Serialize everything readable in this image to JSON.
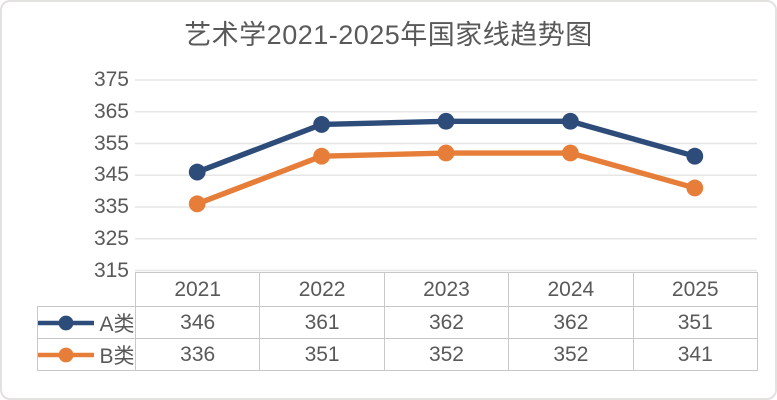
{
  "title": "艺术学2021-2025年国家线趋势图",
  "chart_data": {
    "type": "line",
    "title": "艺术学2021-2025年国家线趋势图",
    "categories": [
      "2021",
      "2022",
      "2023",
      "2024",
      "2025"
    ],
    "series": [
      {
        "name": "A类",
        "values": [
          346,
          361,
          362,
          362,
          351
        ],
        "color": "#2E4C7A"
      },
      {
        "name": "B类",
        "values": [
          336,
          351,
          352,
          352,
          341
        ],
        "color": "#E67E39"
      }
    ],
    "y_ticks": [
      375,
      365,
      355,
      345,
      335,
      325,
      315
    ],
    "ylim": [
      315,
      375
    ],
    "xlabel": "",
    "ylabel": "",
    "grid": true,
    "legend_position": "table-rows-left",
    "grid_color": "#e6e6e6",
    "text_color": "#595959"
  }
}
